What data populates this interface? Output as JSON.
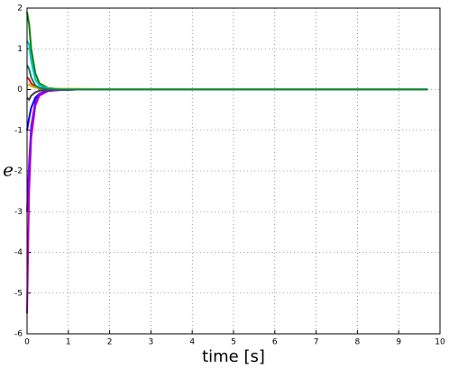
{
  "chart_data": {
    "type": "line",
    "x_label": "time [s]",
    "y_label": "e",
    "x": [
      0,
      0.05,
      0.1,
      0.2,
      0.3,
      0.5,
      0.8,
      1.2,
      2,
      9.7
    ],
    "series": [
      {
        "color": "#0000ff",
        "values": [
          -1.0,
          -0.7,
          -0.45,
          -0.2,
          -0.1,
          -0.03,
          -0.01,
          0,
          0,
          0
        ]
      },
      {
        "color": "#008000",
        "values": [
          1.9,
          1.6,
          1.0,
          0.4,
          0.15,
          0.04,
          0.01,
          0,
          0,
          0
        ]
      },
      {
        "color": "#00bfbf",
        "values": [
          1.2,
          1.1,
          0.7,
          0.25,
          0.1,
          0.03,
          0.01,
          0,
          0,
          0
        ]
      },
      {
        "color": "#bf00bf",
        "values": [
          -5.5,
          -2.5,
          -1.2,
          -0.4,
          -0.15,
          -0.04,
          -0.01,
          0,
          0,
          0
        ]
      },
      {
        "color": "#7f00ff",
        "values": [
          -3.0,
          -1.8,
          -0.9,
          -0.3,
          -0.1,
          -0.03,
          -0.01,
          0,
          0,
          0
        ]
      },
      {
        "color": "#ff0000",
        "values": [
          0.3,
          0.25,
          0.15,
          0.06,
          0.02,
          0.01,
          0,
          0,
          0,
          0
        ]
      },
      {
        "color": "#bfbf00",
        "values": [
          0.1,
          0.12,
          0.08,
          0.05,
          0.03,
          0.02,
          0.02,
          0.02,
          0.01,
          0.01
        ]
      },
      {
        "color": "#404040",
        "values": [
          -0.2,
          -0.25,
          -0.15,
          -0.07,
          -0.03,
          -0.01,
          0,
          0,
          0,
          0
        ]
      },
      {
        "color": "#008060",
        "values": [
          0.6,
          0.5,
          0.3,
          0.1,
          0.04,
          0.01,
          0,
          0,
          0,
          0
        ]
      }
    ],
    "xlim": [
      0,
      10
    ],
    "ylim": [
      -6,
      2
    ],
    "xticks": [
      0,
      1,
      2,
      3,
      4,
      5,
      6,
      7,
      8,
      9,
      10
    ],
    "yticks": [
      -6,
      -5,
      -4,
      -3,
      -2,
      -1,
      0,
      1,
      2
    ],
    "grid": true
  }
}
